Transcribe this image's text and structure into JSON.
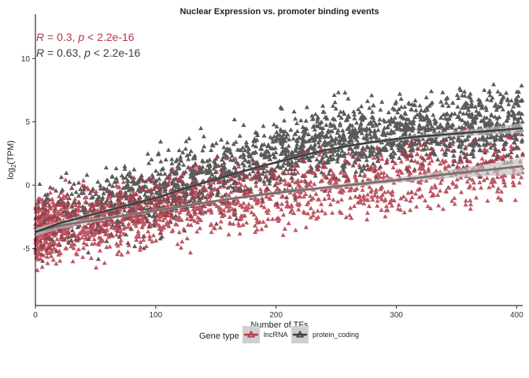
{
  "chart_data": {
    "type": "scatter",
    "title": "Nuclear Expression vs. promoter binding events",
    "xlabel": "Number of TFs",
    "ylabel_main": "log",
    "ylabel_sub": "2",
    "ylabel_tail": "(TPM)",
    "xlim": [
      0,
      405
    ],
    "ylim": [
      -9.5,
      13.5
    ],
    "x_ticks": [
      0,
      100,
      200,
      300,
      400
    ],
    "y_ticks": [
      -5,
      0,
      5,
      10
    ],
    "y_tick_labels": [
      "-5",
      "0",
      "5",
      "10"
    ],
    "grid": false,
    "legend_position": "bottom",
    "legend_title": "Gene type",
    "series": [
      {
        "name": "lncRNA",
        "color": "#b03a48",
        "r_label": "R = 0.3, p < 2.2e-16",
        "r_parts": {
          "r": "R",
          "eq": " = 0.3, ",
          "p": "p",
          "rest": " < 2.2e-16"
        },
        "trend": {
          "x": [
            0,
            20,
            40,
            60,
            80,
            100,
            120,
            140,
            160,
            180,
            200,
            220,
            240,
            260,
            280,
            300,
            320,
            340,
            360,
            380,
            405
          ],
          "y": [
            -3.7,
            -3.2,
            -2.9,
            -2.6,
            -2.3,
            -2.0,
            -1.7,
            -1.4,
            -1.1,
            -0.85,
            -0.6,
            -0.4,
            -0.2,
            0.0,
            0.2,
            0.4,
            0.6,
            0.85,
            1.05,
            1.25,
            1.5
          ],
          "se": [
            0.35,
            0.25,
            0.2,
            0.15,
            0.12,
            0.12,
            0.12,
            0.12,
            0.12,
            0.12,
            0.12,
            0.12,
            0.15,
            0.15,
            0.18,
            0.2,
            0.25,
            0.3,
            0.4,
            0.5,
            0.65
          ]
        }
      },
      {
        "name": "protein_coding",
        "color": "#3d3d3d",
        "r_label": "R = 0.63, p < 2.2e-16",
        "r_parts": {
          "r": "R",
          "eq": " = 0.63, ",
          "p": "p",
          "rest": " < 2.2e-16"
        },
        "trend": {
          "x": [
            0,
            20,
            40,
            60,
            80,
            100,
            120,
            140,
            160,
            180,
            200,
            220,
            240,
            260,
            280,
            300,
            320,
            340,
            360,
            380,
            405
          ],
          "y": [
            -3.7,
            -3.0,
            -2.5,
            -2.0,
            -1.5,
            -1.0,
            -0.4,
            0.2,
            0.75,
            1.3,
            1.8,
            2.3,
            2.75,
            3.1,
            3.4,
            3.65,
            3.85,
            4.0,
            4.15,
            4.3,
            4.5
          ],
          "se": [
            0.25,
            0.18,
            0.14,
            0.12,
            0.1,
            0.1,
            0.1,
            0.1,
            0.1,
            0.1,
            0.1,
            0.1,
            0.1,
            0.1,
            0.12,
            0.14,
            0.16,
            0.2,
            0.25,
            0.3,
            0.4
          ]
        }
      }
    ]
  }
}
